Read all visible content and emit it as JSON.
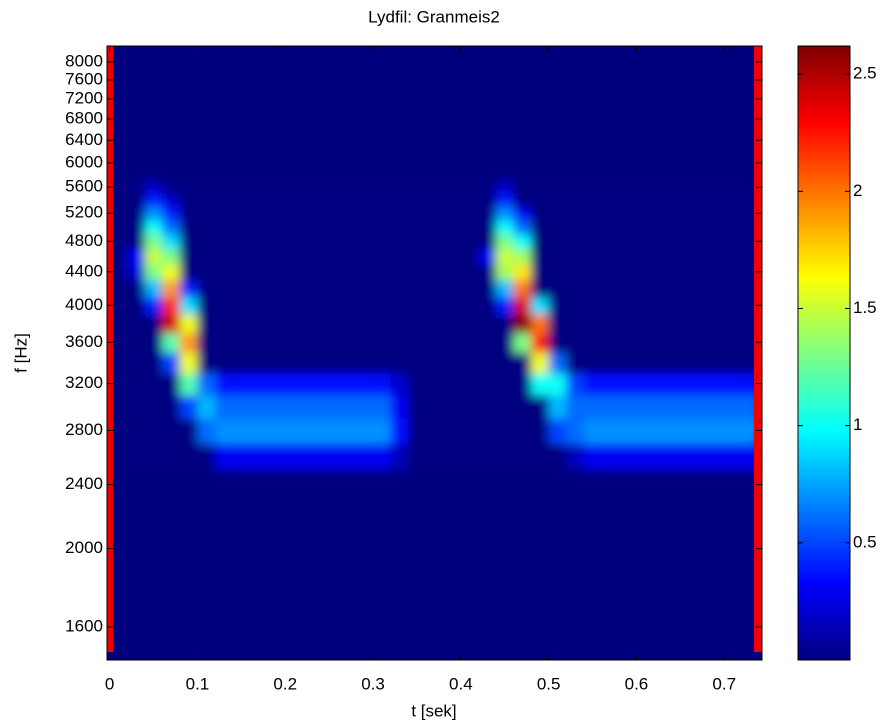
{
  "chart_data": {
    "type": "heatmap",
    "title": "Lydfil: Granmeis2",
    "x_label": "t [sek]",
    "y_label": "f [Hz]",
    "colormap": "jet",
    "ylog": true,
    "xlim": [
      -0.003,
      0.743
    ],
    "ylim": [
      1456,
      8373
    ],
    "clim": [
      0,
      2.62
    ],
    "xticks": [
      0,
      0.1,
      0.2,
      0.3,
      0.4,
      0.5,
      0.6,
      0.7
    ],
    "yticks": [
      1600,
      2000,
      2400,
      2800,
      3200,
      3600,
      4000,
      4400,
      4800,
      5200,
      5600,
      6000,
      6400,
      6800,
      7200,
      7600,
      8000
    ],
    "cticks": [
      0.5,
      1,
      1.5,
      2,
      2.5
    ],
    "x": [
      0.01,
      0.03,
      0.05,
      0.07,
      0.09,
      0.11,
      0.13,
      0.15,
      0.17,
      0.19,
      0.21,
      0.23,
      0.25,
      0.27,
      0.29,
      0.31,
      0.33,
      0.35,
      0.37,
      0.39,
      0.41,
      0.43,
      0.45,
      0.47,
      0.49,
      0.51,
      0.53,
      0.55,
      0.57,
      0.59,
      0.61,
      0.63,
      0.65,
      0.67,
      0.69,
      0.71,
      0.73
    ],
    "y": [
      2600,
      2800,
      3000,
      3200,
      3400,
      3600,
      3800,
      4000,
      4200,
      4400,
      4600,
      4800,
      5000,
      5200,
      5400,
      5600
    ],
    "z": [
      [
        0,
        0,
        0,
        0,
        0,
        0,
        0.3,
        0.3,
        0.3,
        0.3,
        0.3,
        0.3,
        0.3,
        0.3,
        0.3,
        0.3,
        0.15,
        0,
        0,
        0,
        0,
        0,
        0,
        0,
        0,
        0,
        0.15,
        0.3,
        0.3,
        0.3,
        0.3,
        0.3,
        0.3,
        0.3,
        0.3,
        0.3,
        0.3
      ],
      [
        0,
        0,
        0,
        0,
        0,
        0.6,
        0.7,
        0.7,
        0.7,
        0.7,
        0.7,
        0.7,
        0.7,
        0.7,
        0.7,
        0.7,
        0.35,
        0,
        0,
        0,
        0,
        0,
        0,
        0,
        0,
        0.5,
        0.6,
        0.7,
        0.7,
        0.7,
        0.7,
        0.7,
        0.7,
        0.7,
        0.7,
        0.7,
        0.7
      ],
      [
        0,
        0,
        0,
        0,
        0.5,
        0.8,
        0.6,
        0.6,
        0.6,
        0.6,
        0.6,
        0.6,
        0.6,
        0.6,
        0.6,
        0.6,
        0.3,
        0,
        0,
        0,
        0,
        0,
        0,
        0,
        0,
        0.8,
        0.6,
        0.6,
        0.6,
        0.6,
        0.6,
        0.6,
        0.6,
        0.6,
        0.6,
        0.6,
        0.6
      ],
      [
        0,
        0,
        0,
        0,
        1.2,
        0.6,
        0.35,
        0.35,
        0.35,
        0.35,
        0.35,
        0.35,
        0.35,
        0.35,
        0.35,
        0.35,
        0.2,
        0,
        0,
        0,
        0,
        0,
        0,
        0,
        1.0,
        1.0,
        0.5,
        0.35,
        0.35,
        0.35,
        0.35,
        0.35,
        0.35,
        0.35,
        0.35,
        0.35,
        0.35
      ],
      [
        0,
        0,
        0,
        0.5,
        1.6,
        0,
        0,
        0,
        0,
        0,
        0,
        0,
        0,
        0,
        0,
        0,
        0,
        0,
        0,
        0,
        0,
        0,
        0,
        0,
        1.6,
        0.6,
        0,
        0,
        0,
        0,
        0,
        0,
        0,
        0,
        0,
        0,
        0
      ],
      [
        0,
        0,
        0,
        1.2,
        1.9,
        0,
        0,
        0,
        0,
        0,
        0,
        0,
        0,
        0,
        0,
        0,
        0,
        0,
        0,
        0,
        0,
        0,
        0,
        1.3,
        2.2,
        0,
        0,
        0,
        0,
        0,
        0,
        0,
        0,
        0,
        0,
        0,
        0
      ],
      [
        0,
        0,
        0,
        2.4,
        1.6,
        0,
        0,
        0,
        0,
        0,
        0,
        0,
        0,
        0,
        0,
        0,
        0,
        0,
        0,
        0,
        0,
        0,
        0,
        2.6,
        2.0,
        0,
        0,
        0,
        0,
        0,
        0,
        0,
        0,
        0,
        0,
        0,
        0
      ],
      [
        0,
        0,
        0.4,
        2.2,
        0.9,
        0,
        0,
        0,
        0,
        0,
        0,
        0,
        0,
        0,
        0,
        0,
        0,
        0,
        0,
        0,
        0,
        0,
        0.4,
        2.4,
        0.9,
        0,
        0,
        0,
        0,
        0,
        0,
        0,
        0,
        0,
        0,
        0,
        0
      ],
      [
        0,
        0,
        0.8,
        1.9,
        0.4,
        0,
        0,
        0,
        0,
        0,
        0,
        0,
        0,
        0,
        0,
        0,
        0,
        0,
        0,
        0,
        0,
        0,
        0.8,
        2.0,
        0,
        0,
        0,
        0,
        0,
        0,
        0,
        0,
        0,
        0,
        0,
        0,
        0
      ],
      [
        0,
        0.2,
        1.3,
        1.6,
        0,
        0,
        0,
        0,
        0,
        0,
        0,
        0,
        0,
        0,
        0,
        0,
        0,
        0,
        0,
        0,
        0,
        0,
        1.4,
        1.7,
        0,
        0,
        0,
        0,
        0,
        0,
        0,
        0,
        0,
        0,
        0,
        0,
        0
      ],
      [
        0,
        0.3,
        1.5,
        1.3,
        0,
        0,
        0,
        0,
        0,
        0,
        0,
        0,
        0,
        0,
        0,
        0,
        0,
        0,
        0,
        0,
        0,
        0.3,
        1.5,
        1.4,
        0,
        0,
        0,
        0,
        0,
        0,
        0,
        0,
        0,
        0,
        0,
        0,
        0
      ],
      [
        0,
        0,
        1.3,
        0.9,
        0,
        0,
        0,
        0,
        0,
        0,
        0,
        0,
        0,
        0,
        0,
        0,
        0,
        0,
        0,
        0,
        0,
        0,
        1.3,
        1.0,
        0,
        0,
        0,
        0,
        0,
        0,
        0,
        0,
        0,
        0,
        0,
        0,
        0
      ],
      [
        0,
        0,
        1.0,
        0.6,
        0,
        0,
        0,
        0,
        0,
        0,
        0,
        0,
        0,
        0,
        0,
        0,
        0,
        0,
        0,
        0,
        0,
        0,
        1.0,
        0.6,
        0,
        0,
        0,
        0,
        0,
        0,
        0,
        0,
        0,
        0,
        0,
        0,
        0
      ],
      [
        0,
        0,
        0.7,
        0.4,
        0,
        0,
        0,
        0,
        0,
        0,
        0,
        0,
        0,
        0,
        0,
        0,
        0,
        0,
        0,
        0,
        0,
        0,
        0.7,
        0.3,
        0,
        0,
        0,
        0,
        0,
        0,
        0,
        0,
        0,
        0,
        0,
        0,
        0
      ],
      [
        0,
        0,
        0.4,
        0.2,
        0,
        0,
        0,
        0,
        0,
        0,
        0,
        0,
        0,
        0,
        0,
        0,
        0,
        0,
        0,
        0,
        0,
        0,
        0.4,
        0,
        0,
        0,
        0,
        0,
        0,
        0,
        0,
        0,
        0,
        0,
        0,
        0,
        0
      ],
      [
        0,
        0,
        0.2,
        0,
        0,
        0,
        0,
        0,
        0,
        0,
        0,
        0,
        0,
        0,
        0,
        0,
        0,
        0,
        0,
        0,
        0,
        0,
        0.2,
        0,
        0,
        0,
        0,
        0,
        0,
        0,
        0,
        0,
        0,
        0,
        0,
        0,
        0
      ]
    ]
  }
}
